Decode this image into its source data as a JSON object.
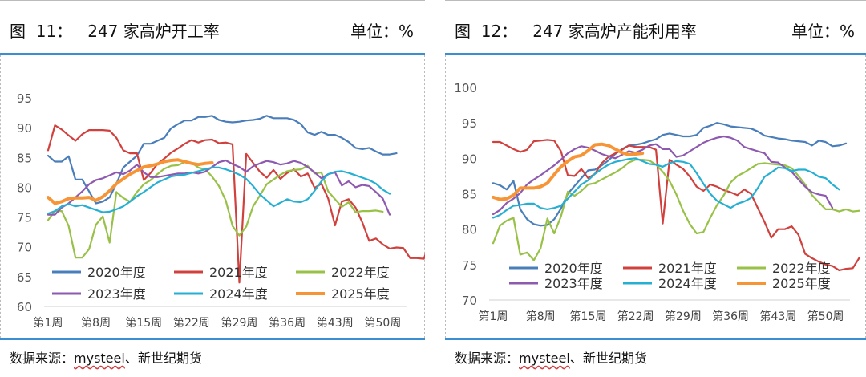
{
  "figures": [
    {
      "title": "图  11：   247 家高炉开工率",
      "unit": "单位：%",
      "source_prefix": "数据来源：",
      "source_word": "mysteel",
      "source_suffix": "、新世纪期货"
    },
    {
      "title": "图  12：   247 家高炉产能利用率",
      "unit": "单位：%",
      "source_prefix": "数据来源：",
      "source_word": "mysteel",
      "source_suffix": "、新世纪期货"
    }
  ],
  "colors": {
    "2020年度": "#4a7ebb",
    "2021年度": "#d0413e",
    "2022年度": "#98c147",
    "2023年度": "#8e5ab0",
    "2024年度": "#25b0d3",
    "2025年度": "#f79536"
  },
  "chart_data": [
    {
      "type": "line",
      "title": "247 家高炉开工率",
      "ylabel": "单位：%",
      "ylim": [
        60,
        95
      ],
      "yticks": [
        "60",
        "65",
        "70",
        "75",
        "80",
        "85",
        "90",
        "95"
      ],
      "xticks": [
        "第1周",
        "第8周",
        "第15周",
        "第22周",
        "第29周",
        "第36周",
        "第43周",
        "第50周"
      ],
      "legend_position": "bottom-inside",
      "series": [
        {
          "name": "2020年度",
          "values": [
            85.3,
            84.3,
            84.3,
            85.2,
            81.3,
            81.3,
            79.3,
            77.3,
            77.6,
            78.3,
            80.6,
            83.3,
            84.3,
            85.3,
            87.3,
            87.3,
            87.8,
            88.3,
            89.9,
            90.6,
            91.2,
            91.2,
            91.8,
            91.8,
            92.0,
            91.3,
            91.0,
            90.9,
            91.0,
            91.2,
            91.3,
            91.5,
            92.0,
            91.6,
            91.6,
            91.6,
            91.3,
            90.6,
            89.2,
            88.8,
            89.3,
            88.8,
            88.8,
            88.3,
            87.6,
            86.6,
            86.4,
            86.6,
            86.0,
            85.5,
            85.5,
            85.7
          ]
        },
        {
          "name": "2021年度",
          "values": [
            86.2,
            90.4,
            89.7,
            88.7,
            87.8,
            88.9,
            89.6,
            89.6,
            89.6,
            89.5,
            88.3,
            86.2,
            85.7,
            85.7,
            81.2,
            82.4,
            83.9,
            84.8,
            85.8,
            86.5,
            87.3,
            87.9,
            87.5,
            87.9,
            88.0,
            87.4,
            87.5,
            87.2,
            64.0,
            85.6,
            84.1,
            82.6,
            81.6,
            82.9,
            81.4,
            82.4,
            83.0,
            81.8,
            82.3,
            79.9,
            80.6,
            78.1,
            73.6,
            77.6,
            78.0,
            76.6,
            74.1,
            71.0,
            71.4,
            70.4,
            69.7,
            69.9,
            69.8,
            68.1,
            68.1,
            68.0,
            71.2
          ]
        },
        {
          "name": "2022年度",
          "values": [
            74.5,
            76.0,
            76.0,
            73.5,
            68.2,
            68.2,
            69.6,
            73.7,
            75.1,
            70.7,
            79.2,
            78.2,
            77.6,
            79.2,
            80.5,
            81.2,
            82.2,
            83.1,
            83.6,
            83.7,
            84.2,
            84.1,
            83.3,
            83.0,
            81.8,
            80.2,
            77.8,
            73.5,
            71.9,
            73.4,
            76.8,
            78.6,
            80.5,
            81.3,
            82.1,
            82.7,
            82.9,
            83.0,
            83.6,
            82.3,
            82.5,
            79.3,
            78.0,
            76.7,
            77.5,
            75.8,
            76.0,
            76.0,
            76.1,
            75.9
          ]
        },
        {
          "name": "2023年度",
          "values": [
            75.4,
            75.4,
            76.6,
            77.3,
            78.3,
            79.3,
            80.5,
            81.2,
            81.5,
            82.0,
            82.5,
            82.2,
            82.8,
            83.8,
            82.5,
            81.7,
            81.7,
            81.9,
            82.1,
            82.3,
            82.3,
            82.5,
            82.3,
            82.6,
            83.4,
            84.2,
            84.5,
            83.9,
            83.4,
            82.6,
            83.5,
            84.0,
            84.4,
            84.2,
            83.8,
            84.0,
            84.4,
            84.1,
            83.4,
            82.5,
            81.5,
            82.2,
            82.5,
            80.3,
            81.0,
            80.0,
            80.4,
            80.2,
            79.2,
            78.1,
            75.4
          ]
        },
        {
          "name": "2024年度",
          "values": [
            75.6,
            76.0,
            76.8,
            77.2,
            76.8,
            77.0,
            76.6,
            76.2,
            75.8,
            75.9,
            76.3,
            76.8,
            77.6,
            78.5,
            79.2,
            80.0,
            80.8,
            81.3,
            81.8,
            82.0,
            82.1,
            82.4,
            82.7,
            83.0,
            83.3,
            83.3,
            83.0,
            82.6,
            82.1,
            81.4,
            80.2,
            78.8,
            77.8,
            76.8,
            77.4,
            78.0,
            77.6,
            77.5,
            78.0,
            79.4,
            81.0,
            82.2,
            82.6,
            82.7,
            82.4,
            82.0,
            81.6,
            81.2,
            80.6,
            79.6,
            78.9
          ]
        },
        {
          "name": "2025年度",
          "values": [
            78.3,
            77.3,
            77.6,
            78.1,
            78.2,
            78.2,
            78.3,
            77.8,
            78.4,
            79.4,
            80.6,
            81.4,
            82.2,
            82.8,
            83.4,
            83.6,
            83.9,
            84.3,
            84.5,
            84.6,
            84.3,
            84.0,
            83.8,
            84.0,
            84.1
          ]
        }
      ]
    },
    {
      "type": "line",
      "title": "247 家高炉产能利用率",
      "ylabel": "单位：%",
      "ylim": [
        70,
        100
      ],
      "yticks": [
        "70",
        "75",
        "80",
        "85",
        "90",
        "95",
        "100"
      ],
      "xticks": [
        "第1周",
        "第8周",
        "第15周",
        "第22周",
        "第29周",
        "第36周",
        "第43周",
        "第50周"
      ],
      "legend_position": "bottom-inside",
      "series": [
        {
          "name": "2020年度",
          "values": [
            86.5,
            86.2,
            85.6,
            86.8,
            82.8,
            81.4,
            80.7,
            80.5,
            80.6,
            81.4,
            82.9,
            85.0,
            86.1,
            87.2,
            88.3,
            88.4,
            89.0,
            89.7,
            90.6,
            91.3,
            91.8,
            91.9,
            92.1,
            92.4,
            92.7,
            93.3,
            93.5,
            93.3,
            93.1,
            93.1,
            93.3,
            94.3,
            94.6,
            95.0,
            94.8,
            94.5,
            94.4,
            94.3,
            94.2,
            93.8,
            93.2,
            93.0,
            92.8,
            92.7,
            92.5,
            92.4,
            92.3,
            91.8,
            92.5,
            92.3,
            91.7,
            91.8,
            92.1
          ]
        },
        {
          "name": "2021年度",
          "values": [
            92.3,
            92.3,
            91.8,
            91.3,
            90.9,
            91.2,
            92.4,
            92.5,
            92.6,
            92.5,
            91.0,
            87.6,
            87.5,
            88.5,
            87.2,
            87.8,
            89.3,
            90.2,
            90.7,
            91.2,
            91.8,
            91.6,
            91.6,
            91.6,
            91.2,
            80.8,
            89.8,
            89.1,
            88.5,
            87.4,
            86.0,
            85.4,
            86.3,
            86.0,
            85.5,
            85.2,
            84.8,
            85.6,
            85.0,
            83.0,
            81.0,
            78.8,
            80.0,
            80.0,
            80.4,
            79.2,
            76.5,
            75.9,
            75.4,
            75.0,
            74.8,
            74.2,
            74.4,
            74.5,
            76.0
          ]
        },
        {
          "name": "2022年度",
          "values": [
            78.0,
            80.5,
            81.2,
            81.6,
            76.4,
            76.7,
            75.6,
            77.3,
            81.5,
            79.4,
            81.8,
            85.3,
            84.7,
            85.4,
            86.3,
            86.5,
            87.0,
            87.5,
            88.0,
            88.6,
            89.4,
            89.8,
            89.8,
            89.7,
            89.1,
            88.1,
            86.8,
            84.9,
            82.6,
            80.7,
            79.4,
            79.6,
            81.6,
            83.4,
            84.8,
            86.6,
            87.5,
            88.0,
            88.6,
            89.2,
            89.3,
            89.2,
            89.1,
            89.0,
            88.6,
            87.5,
            86.3,
            84.8,
            83.8,
            82.8,
            82.8,
            82.5,
            82.8,
            82.5,
            82.6
          ]
        },
        {
          "name": "2023年度",
          "values": [
            82.1,
            82.7,
            83.7,
            84.3,
            85.1,
            86.3,
            87.0,
            87.6,
            88.3,
            89.0,
            89.8,
            90.7,
            91.3,
            91.7,
            91.5,
            91.1,
            90.6,
            90.3,
            90.0,
            90.5,
            91.0,
            90.8,
            91.2,
            91.8,
            92.0,
            91.3,
            91.3,
            90.2,
            90.4,
            91.0,
            91.6,
            92.2,
            92.6,
            92.9,
            93.1,
            92.9,
            92.5,
            91.6,
            91.3,
            91.0,
            90.7,
            89.5,
            89.4,
            88.7,
            88.1,
            87.0,
            86.0,
            85.2,
            84.9,
            84.7,
            83.0
          ]
        },
        {
          "name": "2024年度",
          "values": [
            81.6,
            82.0,
            82.7,
            83.3,
            83.4,
            83.6,
            83.6,
            83.0,
            82.8,
            83.0,
            83.3,
            84.3,
            85.3,
            86.3,
            86.9,
            87.8,
            88.5,
            89.1,
            89.5,
            89.7,
            89.9,
            90.0,
            89.6,
            89.2,
            89.1,
            88.8,
            89.3,
            89.6,
            89.5,
            89.2,
            87.9,
            86.4,
            85.0,
            84.0,
            83.5,
            83.0,
            83.6,
            83.9,
            84.4,
            85.8,
            87.4,
            88.0,
            88.7,
            88.6,
            88.2,
            88.4,
            88.4,
            88.0,
            87.4,
            87.2,
            86.3,
            85.6
          ]
        },
        {
          "name": "2025年度",
          "values": [
            84.5,
            84.2,
            84.3,
            84.8,
            85.8,
            85.8,
            85.8,
            86.0,
            86.5,
            87.7,
            88.8,
            89.6,
            90.2,
            90.4,
            91.1,
            91.9,
            92.0,
            91.8,
            91.3,
            90.8,
            90.5,
            90.6,
            90.7
          ]
        }
      ]
    }
  ]
}
